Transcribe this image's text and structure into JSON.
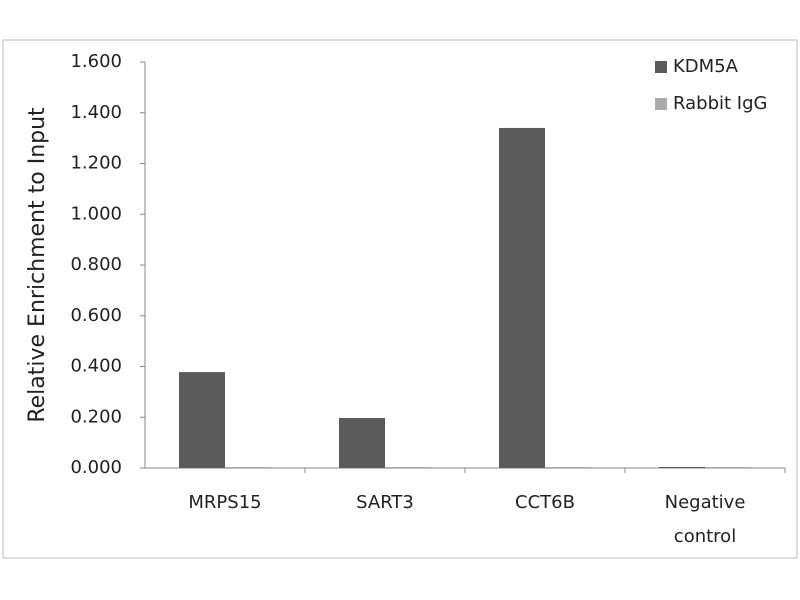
{
  "chart_data": {
    "type": "bar",
    "y_label": "Relative Enrichment to Input",
    "categories": [
      "MRPS15",
      "SART3",
      "CCT6B",
      "Negative control"
    ],
    "series": [
      {
        "name": "KDM5A",
        "color": "#5b5b5b",
        "values": [
          0.378,
          0.197,
          1.34,
          0.004
        ]
      },
      {
        "name": "Rabbit IgG",
        "color": "#ababab",
        "values": [
          0.004,
          0.004,
          0.004,
          0.004
        ]
      }
    ],
    "ylim": [
      0,
      1.6
    ],
    "yticks": [
      {
        "value": 0,
        "label": "0.000"
      },
      {
        "value": 0.2,
        "label": "0.200"
      },
      {
        "value": 0.4,
        "label": "0.400"
      },
      {
        "value": 0.6,
        "label": "0.600"
      },
      {
        "value": 0.8,
        "label": "0.800"
      },
      {
        "value": 1.0,
        "label": "1.000"
      },
      {
        "value": 1.2,
        "label": "1.200"
      },
      {
        "value": 1.4,
        "label": "1.400"
      },
      {
        "value": 1.6,
        "label": "1.600"
      }
    ],
    "legend": "top-right"
  }
}
